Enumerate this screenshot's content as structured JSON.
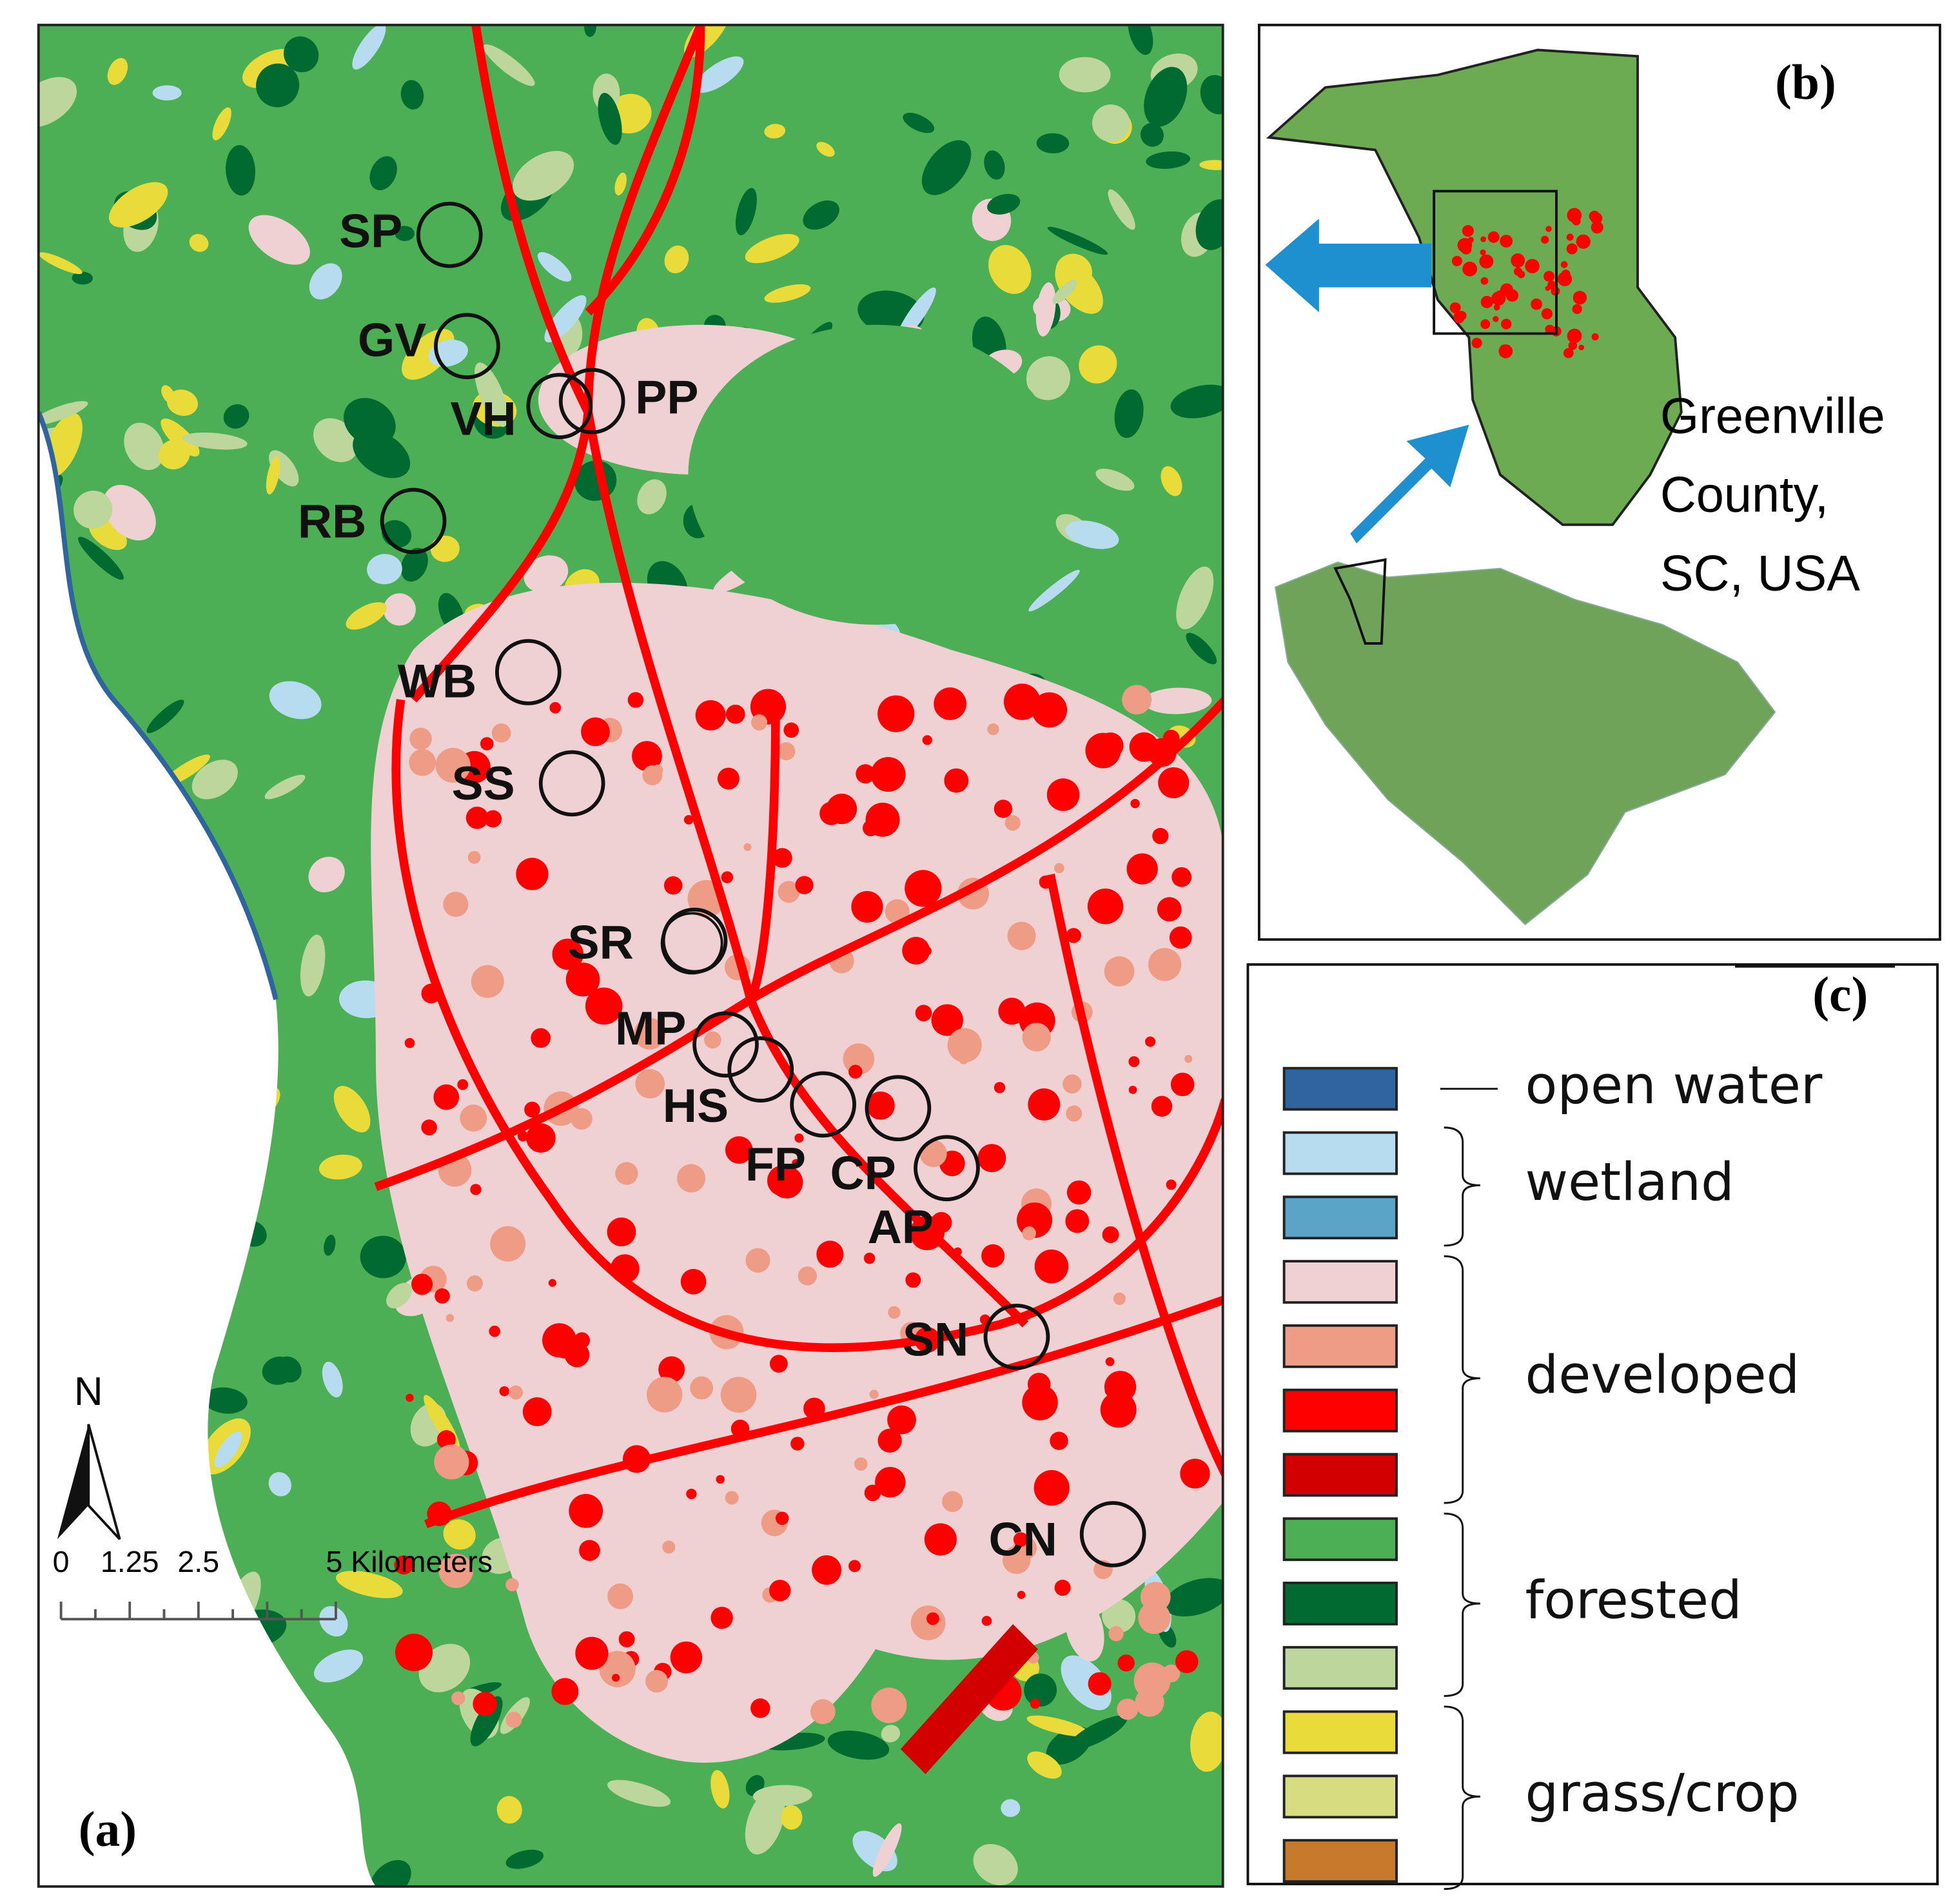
{
  "panel_a": {
    "label": "(a)",
    "north": "N",
    "scale_labels": [
      "0",
      "1.25",
      "2.5",
      "5 Kilometers"
    ],
    "sites": [
      "SP",
      "GV",
      "VH",
      "PP",
      "RB",
      "WB",
      "SS",
      "SR",
      "MP",
      "HS",
      "FP",
      "CP",
      "AP",
      "SN",
      "CN"
    ]
  },
  "panel_b": {
    "label": "(b)",
    "caption": [
      "Greenville",
      "County,",
      "SC, USA"
    ]
  },
  "panel_c": {
    "label": "(c)",
    "legend": [
      {
        "label": "open water",
        "colors": [
          "#2e64a0"
        ]
      },
      {
        "label": "wetland",
        "colors": [
          "#b8dcef",
          "#5ba3c7"
        ]
      },
      {
        "label": "developed",
        "colors": [
          "#efd0d3",
          "#ef9c86",
          "#ff0000",
          "#d20000"
        ]
      },
      {
        "label": "forested",
        "colors": [
          "#4caf55",
          "#006a30",
          "#bcd69b"
        ]
      },
      {
        "label": "grass/crop",
        "colors": [
          "#e9dc3a",
          "#d6dc80",
          "#c77a2b"
        ]
      }
    ]
  }
}
